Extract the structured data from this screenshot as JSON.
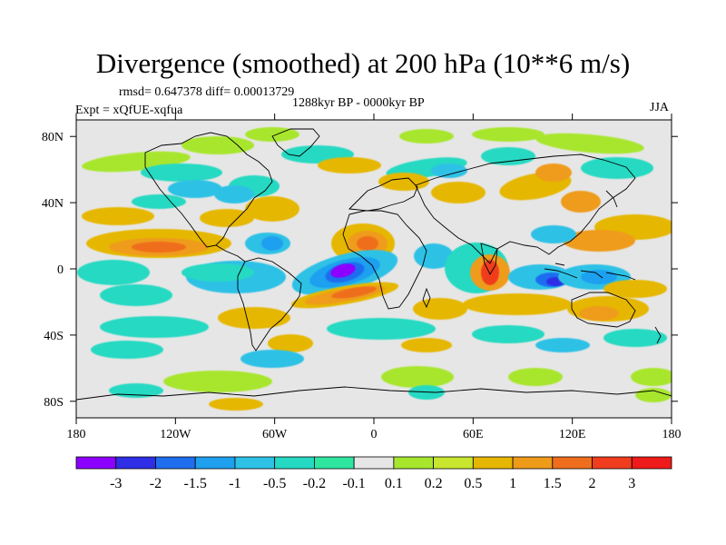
{
  "title": "Divergence (smoothed) at 200 hPa (10**6 m/s)",
  "stats": "rmsd= 0.647378 diff= 0.00013729",
  "period": "1288kyr BP - 0000kyr BP",
  "experiment": "Expt = xQfUE-xqfua",
  "season": "JJA",
  "map": {
    "projection": "cylindrical equidistant",
    "lon_range": [
      -180,
      180
    ],
    "lat_range": [
      -90,
      90
    ],
    "lat_ticks": [
      {
        "value": 80,
        "label": "80N"
      },
      {
        "value": 40,
        "label": "40N"
      },
      {
        "value": 0,
        "label": "0"
      },
      {
        "value": -40,
        "label": "40S"
      },
      {
        "value": -80,
        "label": "80S"
      }
    ],
    "lon_ticks": [
      {
        "value": -180,
        "label": "180"
      },
      {
        "value": -120,
        "label": "120W"
      },
      {
        "value": -60,
        "label": "60W"
      },
      {
        "value": 0,
        "label": "0"
      },
      {
        "value": 60,
        "label": "60E"
      },
      {
        "value": 120,
        "label": "120E"
      },
      {
        "value": 180,
        "label": "180"
      }
    ],
    "background_color": "#e6e6e6",
    "features": [
      {
        "name": "southern-atlantic-minimum",
        "lon": -15,
        "lat": -2,
        "value": -3
      },
      {
        "name": "india-maximum",
        "lon": 75,
        "lat": 0,
        "value": 2
      },
      {
        "name": "tropical-atlantic-maximum",
        "lon": -10,
        "lat": 12,
        "value": 1.5
      },
      {
        "name": "maritime-continent-minimum",
        "lon": 108,
        "lat": -6,
        "value": -2
      }
    ]
  },
  "colorbar": {
    "colors": [
      "#8c00ff",
      "#2e2ee6",
      "#1f6eef",
      "#1ea0ef",
      "#2ec1e6",
      "#26d9c2",
      "#2ee6a0",
      "#e6e6e6",
      "#a8e62e",
      "#c8e62e",
      "#e6b700",
      "#ef9b1a",
      "#ef6e1e",
      "#ef3d1e",
      "#ef1a1a"
    ],
    "labels": [
      "-3",
      "-2",
      "-1.5",
      "-1",
      "-0.5",
      "-0.2",
      "-0.1",
      "0.1",
      "0.2",
      "0.5",
      "1",
      "1.5",
      "2",
      "3"
    ]
  }
}
